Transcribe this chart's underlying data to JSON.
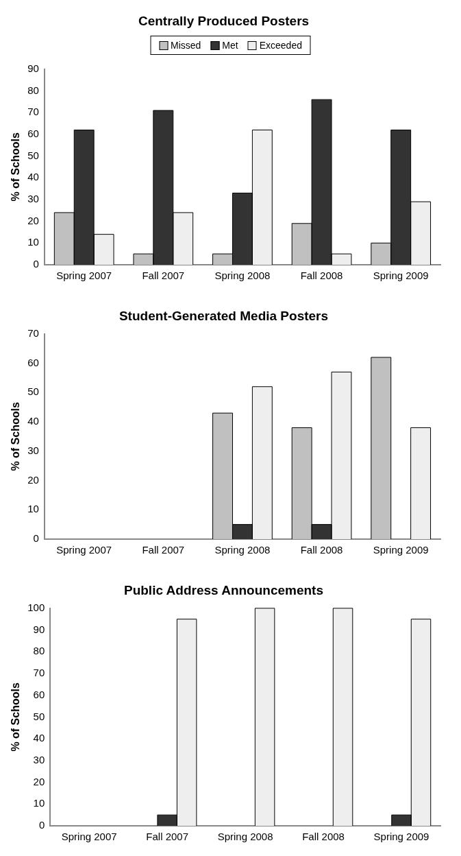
{
  "chart_data": [
    {
      "type": "bar",
      "title": "Centrally Produced Posters",
      "ylabel": "% of Schools",
      "categories": [
        "Spring 2007",
        "Fall 2007",
        "Spring 2008",
        "Fall 2008",
        "Spring 2009"
      ],
      "series": [
        {
          "name": "Missed",
          "color": "#c0c0c0",
          "values": [
            24,
            5,
            5,
            19,
            10
          ]
        },
        {
          "name": "Met",
          "color": "#333333",
          "values": [
            62,
            71,
            33,
            76,
            62
          ]
        },
        {
          "name": "Exceeded",
          "color": "#eeeeee",
          "values": [
            14,
            24,
            62,
            5,
            29
          ]
        }
      ],
      "ylim": [
        0,
        90
      ],
      "yticks": [
        0,
        10,
        20,
        30,
        40,
        50,
        60,
        70,
        80,
        90
      ],
      "legend": "top",
      "grid": false
    },
    {
      "type": "bar",
      "title": "Student-Generated Media Posters",
      "ylabel": "% of Schools",
      "categories": [
        "Spring 2007",
        "Fall 2007",
        "Spring 2008",
        "Fall 2008",
        "Spring 2009"
      ],
      "series": [
        {
          "color": "#c0c0c0",
          "values": [
            null,
            null,
            43,
            38,
            62
          ]
        },
        {
          "color": "#333333",
          "values": [
            null,
            null,
            5,
            5,
            null
          ]
        },
        {
          "color": "#eeeeee",
          "values": [
            null,
            null,
            52,
            57,
            38
          ]
        }
      ],
      "ylim": [
        0,
        70
      ],
      "yticks": [
        0,
        10,
        20,
        30,
        40,
        50,
        60,
        70
      ],
      "grid": false
    },
    {
      "type": "bar",
      "title": "Public Address Announcements",
      "ylabel": "% of Schools",
      "categories": [
        "Spring 2007",
        "Fall 2007",
        "Spring 2008",
        "Fall 2008",
        "Spring 2009"
      ],
      "series": [
        {
          "color": "#c0c0c0",
          "values": [
            null,
            null,
            null,
            null,
            null
          ]
        },
        {
          "color": "#333333",
          "values": [
            null,
            5,
            null,
            null,
            5
          ]
        },
        {
          "color": "#eeeeee",
          "values": [
            null,
            95,
            100,
            100,
            95
          ]
        }
      ],
      "ylim": [
        0,
        100
      ],
      "yticks": [
        0,
        10,
        20,
        30,
        40,
        50,
        60,
        70,
        80,
        90,
        100
      ],
      "grid": false
    }
  ]
}
